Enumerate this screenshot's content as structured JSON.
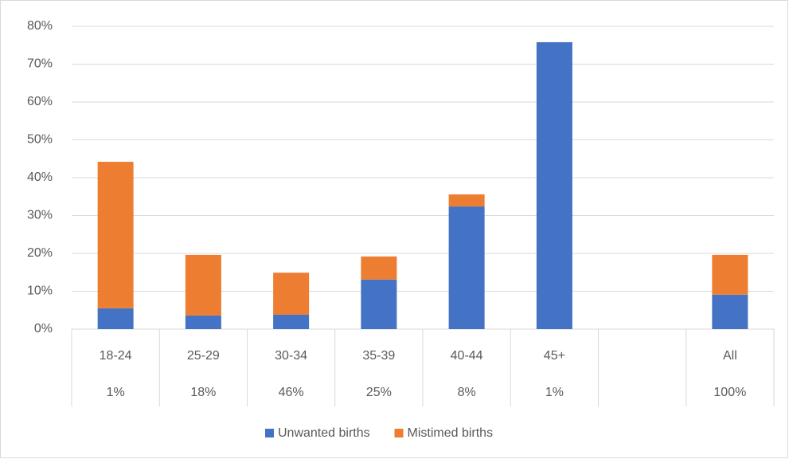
{
  "chart_data": {
    "type": "stacked_bar",
    "categories": [
      "18-24",
      "25-29",
      "30-34",
      "35-39",
      "40-44",
      "45+",
      null,
      "All"
    ],
    "sublabels": [
      "1%",
      "18%",
      "46%",
      "25%",
      "8%",
      "1%",
      null,
      "100%"
    ],
    "series": [
      {
        "name": "Unwanted births",
        "color": "#4472c4",
        "values": [
          5.5,
          3.6,
          3.8,
          13.1,
          32.4,
          75.8,
          null,
          9.1
        ]
      },
      {
        "name": "Mistimed births",
        "color": "#ed7d31",
        "values": [
          38.7,
          16.0,
          11.1,
          6.1,
          3.2,
          0,
          null,
          10.5
        ]
      }
    ],
    "ylim": [
      0,
      80
    ],
    "yticks": [
      {
        "value": 0,
        "label": "0%"
      },
      {
        "value": 10,
        "label": "10%"
      },
      {
        "value": 20,
        "label": "20%"
      },
      {
        "value": 30,
        "label": "30%"
      },
      {
        "value": 40,
        "label": "40%"
      },
      {
        "value": 50,
        "label": "50%"
      },
      {
        "value": 60,
        "label": "60%"
      },
      {
        "value": 70,
        "label": "70%"
      },
      {
        "value": 80,
        "label": "80%"
      }
    ],
    "grid": true,
    "legend": "bottom"
  }
}
